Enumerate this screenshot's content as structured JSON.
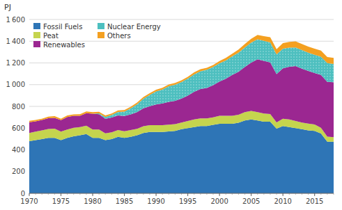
{
  "chart_data": {
    "type": "area",
    "stacked": true,
    "y_label": "PJ",
    "x": [
      1970,
      1971,
      1972,
      1973,
      1974,
      1975,
      1976,
      1977,
      1978,
      1979,
      1980,
      1981,
      1982,
      1983,
      1984,
      1985,
      1986,
      1987,
      1988,
      1989,
      1990,
      1991,
      1992,
      1993,
      1994,
      1995,
      1996,
      1997,
      1998,
      1999,
      2000,
      2001,
      2002,
      2003,
      2004,
      2005,
      2006,
      2007,
      2008,
      2009,
      2010,
      2011,
      2012,
      2013,
      2014,
      2015,
      2016,
      2017,
      2018
    ],
    "series": [
      {
        "name": "Fossil Fuels",
        "color": "#2E75B6",
        "values": [
          480,
          490,
          500,
          510,
          510,
          490,
          510,
          525,
          535,
          545,
          510,
          510,
          490,
          500,
          520,
          510,
          520,
          535,
          555,
          565,
          565,
          565,
          570,
          575,
          590,
          600,
          610,
          620,
          620,
          630,
          640,
          640,
          640,
          650,
          670,
          680,
          670,
          660,
          660,
          595,
          620,
          610,
          600,
          590,
          580,
          575,
          550,
          475,
          475
        ]
      },
      {
        "name": "Peat",
        "color": "#C5D44E",
        "values": [
          75,
          78,
          80,
          82,
          85,
          78,
          78,
          78,
          74,
          78,
          78,
          78,
          62,
          62,
          62,
          62,
          62,
          58,
          62,
          62,
          62,
          62,
          62,
          62,
          62,
          65,
          70,
          70,
          70,
          70,
          74,
          74,
          74,
          74,
          78,
          78,
          78,
          74,
          70,
          58,
          66,
          70,
          66,
          62,
          62,
          58,
          54,
          46,
          42
        ]
      },
      {
        "name": "Renewables",
        "color": "#9B2791",
        "values": [
          100,
          95,
          95,
          100,
          100,
          105,
          115,
          110,
          105,
          115,
          145,
          140,
          135,
          135,
          135,
          140,
          145,
          155,
          165,
          175,
          190,
          200,
          210,
          215,
          220,
          235,
          255,
          270,
          280,
          295,
          315,
          340,
          375,
          395,
          415,
          445,
          485,
          485,
          475,
          445,
          465,
          485,
          505,
          495,
          485,
          475,
          485,
          505,
          505
        ]
      },
      {
        "name": "Nuclear Energy",
        "color": "#4DBFBF",
        "values": [
          0,
          0,
          0,
          0,
          0,
          0,
          0,
          0,
          0,
          0,
          0,
          8,
          16,
          24,
          32,
          40,
          56,
          72,
          88,
          104,
          120,
          128,
          144,
          148,
          152,
          156,
          160,
          164,
          168,
          168,
          168,
          168,
          172,
          176,
          180,
          184,
          184,
          184,
          184,
          180,
          180,
          176,
          172,
          172,
          168,
          168,
          168,
          172,
          168
        ]
      },
      {
        "name": "Others",
        "color": "#F4A020",
        "values": [
          12,
          12,
          12,
          14,
          16,
          14,
          14,
          14,
          14,
          16,
          14,
          14,
          14,
          14,
          14,
          14,
          14,
          16,
          16,
          16,
          16,
          16,
          16,
          16,
          16,
          16,
          18,
          18,
          18,
          18,
          20,
          24,
          24,
          28,
          32,
          36,
          40,
          44,
          48,
          48,
          52,
          52,
          56,
          56,
          56,
          56,
          56,
          56,
          56
        ]
      }
    ],
    "xlim": [
      1970,
      2018
    ],
    "xticks": [
      1970,
      1975,
      1980,
      1985,
      1990,
      1995,
      2000,
      2005,
      2010,
      2015
    ],
    "ylim": [
      0,
      1600
    ],
    "yticks": [
      0,
      200,
      400,
      600,
      800,
      {
        "value": 1000,
        "label": "1 000"
      },
      {
        "value": 1200,
        "label": "1 200"
      },
      {
        "value": 1400,
        "label": "1 400"
      },
      {
        "value": 1600,
        "label": "1 600"
      }
    ],
    "grid": true,
    "legend": "upper left"
  }
}
